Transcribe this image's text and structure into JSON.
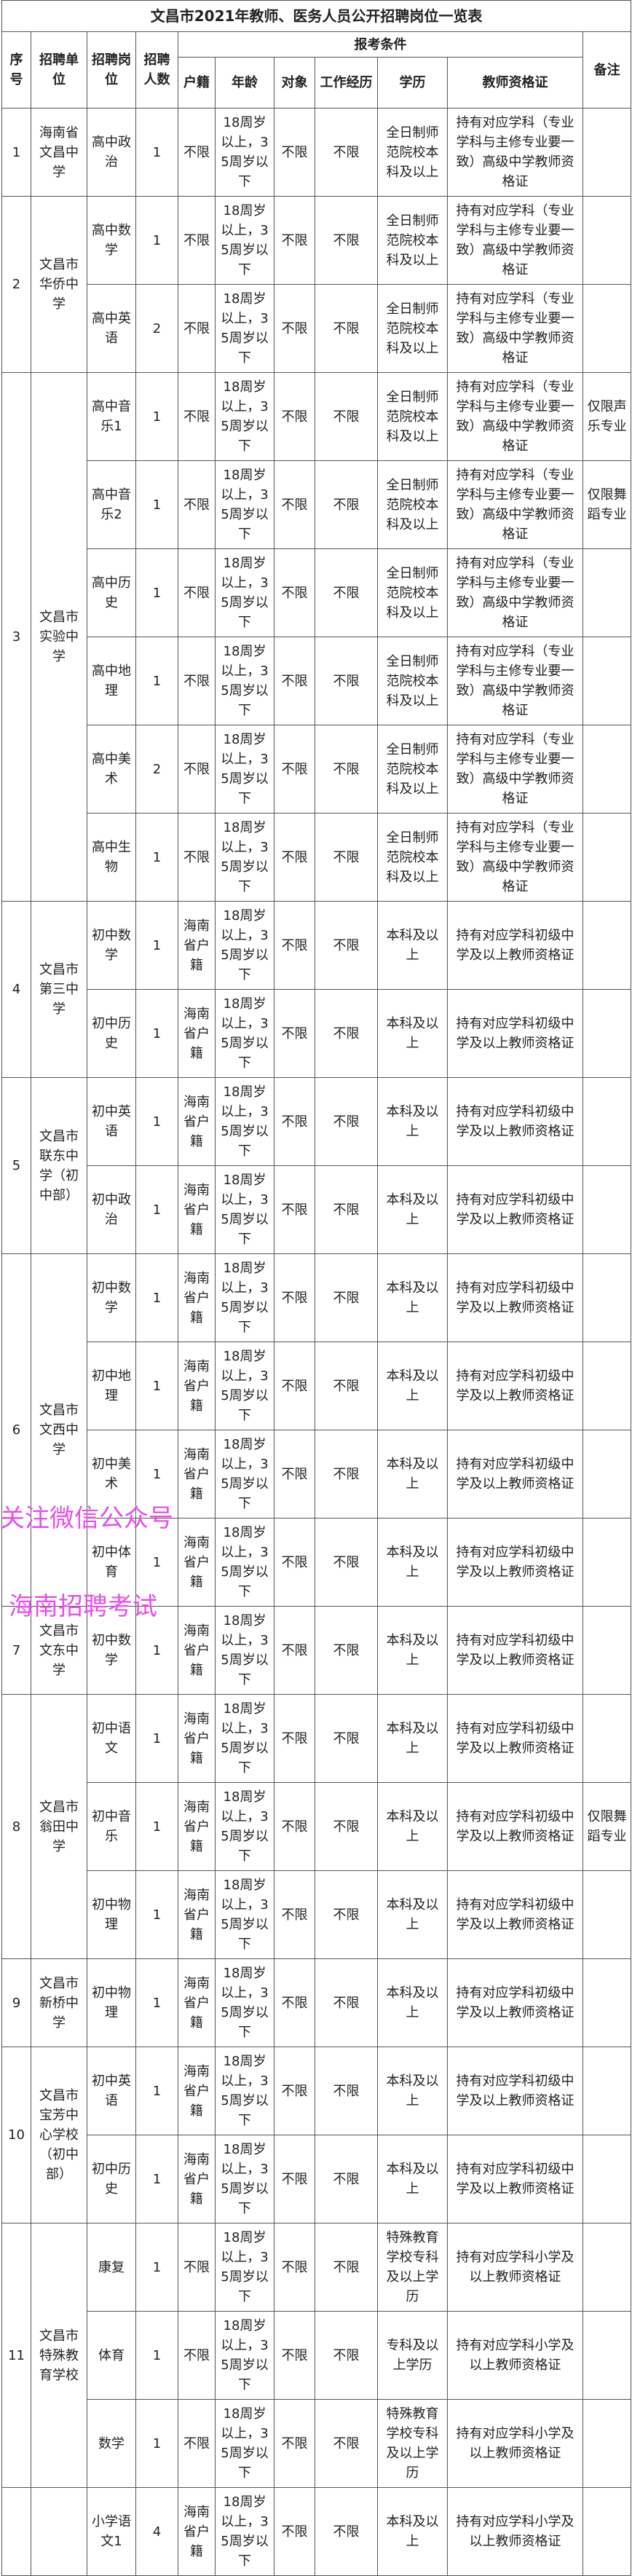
{
  "title": "文昌市2021年教师、医务人员公开招聘岗位一览表",
  "headers": {
    "seq": "序号",
    "unit": "招聘单位",
    "position": "招聘岗位",
    "count": "招聘人数",
    "conditions": "报考条件",
    "huji": "户籍",
    "age": "年龄",
    "target": "对象",
    "experience": "工作经历",
    "education": "学历",
    "certificate": "教师资格证",
    "remark": "备注"
  },
  "groups": [
    {
      "seq": "1",
      "unit": "海南省文昌中学",
      "positions": [
        {
          "name": "高中政治",
          "count": "1",
          "huji": "不限",
          "age": "18周岁以上，35周岁以下",
          "target": "不限",
          "experience": "不限",
          "education": "全日制师范院校本科及以上",
          "certificate": "持有对应学科（专业学科与主修专业要一致）高级中学教师资格证",
          "remark": ""
        }
      ]
    },
    {
      "seq": "2",
      "unit": "文昌市华侨中学",
      "positions": [
        {
          "name": "高中数学",
          "count": "1",
          "huji": "不限",
          "age": "18周岁以上，35周岁以下",
          "target": "不限",
          "experience": "不限",
          "education": "全日制师范院校本科及以上",
          "certificate": "持有对应学科（专业学科与主修专业要一致）高级中学教师资格证",
          "remark": ""
        },
        {
          "name": "高中英语",
          "count": "2",
          "huji": "不限",
          "age": "18周岁以上，35周岁以下",
          "target": "不限",
          "experience": "不限",
          "education": "全日制师范院校本科及以上",
          "certificate": "持有对应学科（专业学科与主修专业要一致）高级中学教师资格证",
          "remark": ""
        }
      ]
    },
    {
      "seq": "3",
      "unit": "文昌市实验中学",
      "positions": [
        {
          "name": "高中音乐1",
          "count": "1",
          "huji": "不限",
          "age": "18周岁以上，35周岁以下",
          "target": "不限",
          "experience": "不限",
          "education": "全日制师范院校本科及以上",
          "certificate": "持有对应学科（专业学科与主修专业要一致）高级中学教师资格证",
          "remark": "仅限声乐专业"
        },
        {
          "name": "高中音乐2",
          "count": "1",
          "huji": "不限",
          "age": "18周岁以上，35周岁以下",
          "target": "不限",
          "experience": "不限",
          "education": "全日制师范院校本科及以上",
          "certificate": "持有对应学科（专业学科与主修专业要一致）高级中学教师资格证",
          "remark": "仅限舞蹈专业"
        },
        {
          "name": "高中历史",
          "count": "1",
          "huji": "不限",
          "age": "18周岁以上，35周岁以下",
          "target": "不限",
          "experience": "不限",
          "education": "全日制师范院校本科及以上",
          "certificate": "持有对应学科（专业学科与主修专业要一致）高级中学教师资格证",
          "remark": ""
        },
        {
          "name": "高中地理",
          "count": "1",
          "huji": "不限",
          "age": "18周岁以上，35周岁以下",
          "target": "不限",
          "experience": "不限",
          "education": "全日制师范院校本科及以上",
          "certificate": "持有对应学科（专业学科与主修专业要一致）高级中学教师资格证",
          "remark": ""
        },
        {
          "name": "高中美术",
          "count": "2",
          "huji": "不限",
          "age": "18周岁以上，35周岁以下",
          "target": "不限",
          "experience": "不限",
          "education": "全日制师范院校本科及以上",
          "certificate": "持有对应学科（专业学科与主修专业要一致）高级中学教师资格证",
          "remark": ""
        },
        {
          "name": "高中生物",
          "count": "1",
          "huji": "不限",
          "age": "18周岁以上，35周岁以下",
          "target": "不限",
          "experience": "不限",
          "education": "全日制师范院校本科及以上",
          "certificate": "持有对应学科（专业学科与主修专业要一致）高级中学教师资格证",
          "remark": ""
        }
      ]
    },
    {
      "seq": "4",
      "unit": "文昌市第三中学",
      "positions": [
        {
          "name": "初中数学",
          "count": "1",
          "huji": "海南省户籍",
          "age": "18周岁以上，35周岁以下",
          "target": "不限",
          "experience": "不限",
          "education": "本科及以上",
          "certificate": "持有对应学科初级中学及以上教师资格证",
          "remark": ""
        },
        {
          "name": "初中历史",
          "count": "1",
          "huji": "海南省户籍",
          "age": "18周岁以上，35周岁以下",
          "target": "不限",
          "experience": "不限",
          "education": "本科及以上",
          "certificate": "持有对应学科初级中学及以上教师资格证",
          "remark": ""
        }
      ]
    },
    {
      "seq": "5",
      "unit": "文昌市联东中学（初中部）",
      "positions": [
        {
          "name": "初中英语",
          "count": "1",
          "huji": "海南省户籍",
          "age": "18周岁以上，35周岁以下",
          "target": "不限",
          "experience": "不限",
          "education": "本科及以上",
          "certificate": "持有对应学科初级中学及以上教师资格证",
          "remark": ""
        },
        {
          "name": "初中政治",
          "count": "1",
          "huji": "海南省户籍",
          "age": "18周岁以上，35周岁以下",
          "target": "不限",
          "experience": "不限",
          "education": "本科及以上",
          "certificate": "持有对应学科初级中学及以上教师资格证",
          "remark": ""
        }
      ]
    },
    {
      "seq": "6",
      "unit": "文昌市文西中学",
      "positions": [
        {
          "name": "初中数学",
          "count": "1",
          "huji": "海南省户籍",
          "age": "18周岁以上，35周岁以下",
          "target": "不限",
          "experience": "不限",
          "education": "本科及以上",
          "certificate": "持有对应学科初级中学及以上教师资格证",
          "remark": ""
        },
        {
          "name": "初中地理",
          "count": "1",
          "huji": "海南省户籍",
          "age": "18周岁以上，35周岁以下",
          "target": "不限",
          "experience": "不限",
          "education": "本科及以上",
          "certificate": "持有对应学科初级中学及以上教师资格证",
          "remark": ""
        },
        {
          "name": "初中美术",
          "count": "1",
          "huji": "海南省户籍",
          "age": "18周岁以上，35周岁以下",
          "target": "不限",
          "experience": "不限",
          "education": "本科及以上",
          "certificate": "持有对应学科初级中学及以上教师资格证",
          "remark": ""
        },
        {
          "name": "初中体育",
          "count": "1",
          "huji": "海南省户籍",
          "age": "18周岁以上，35周岁以下",
          "target": "不限",
          "experience": "不限",
          "education": "本科及以上",
          "certificate": "持有对应学科初级中学及以上教师资格证",
          "remark": ""
        }
      ]
    },
    {
      "seq": "7",
      "unit": "文昌市文东中学",
      "positions": [
        {
          "name": "初中数学",
          "count": "1",
          "huji": "海南省户籍",
          "age": "18周岁以上，35周岁以下",
          "target": "不限",
          "experience": "不限",
          "education": "本科及以上",
          "certificate": "持有对应学科初级中学及以上教师资格证",
          "remark": ""
        }
      ]
    },
    {
      "seq": "8",
      "unit": "文昌市翁田中学",
      "positions": [
        {
          "name": "初中语文",
          "count": "1",
          "huji": "海南省户籍",
          "age": "18周岁以上，35周岁以下",
          "target": "不限",
          "experience": "不限",
          "education": "本科及以上",
          "certificate": "持有对应学科初级中学及以上教师资格证",
          "remark": ""
        },
        {
          "name": "初中音乐",
          "count": "1",
          "huji": "海南省户籍",
          "age": "18周岁以上，35周岁以下",
          "target": "不限",
          "experience": "不限",
          "education": "本科及以上",
          "certificate": "持有对应学科初级中学及以上教师资格证",
          "remark": "仅限舞蹈专业"
        },
        {
          "name": "初中物理",
          "count": "1",
          "huji": "海南省户籍",
          "age": "18周岁以上，35周岁以下",
          "target": "不限",
          "experience": "不限",
          "education": "本科及以上",
          "certificate": "持有对应学科初级中学及以上教师资格证",
          "remark": ""
        }
      ]
    },
    {
      "seq": "9",
      "unit": "文昌市新桥中学",
      "positions": [
        {
          "name": "初中物理",
          "count": "1",
          "huji": "海南省户籍",
          "age": "18周岁以上，35周岁以下",
          "target": "不限",
          "experience": "不限",
          "education": "本科及以上",
          "certificate": "持有对应学科初级中学及以上教师资格证",
          "remark": ""
        }
      ]
    },
    {
      "seq": "10",
      "unit": "文昌市宝芳中心学校（初中部）",
      "positions": [
        {
          "name": "初中英语",
          "count": "1",
          "huji": "海南省户籍",
          "age": "18周岁以上，35周岁以下",
          "target": "不限",
          "experience": "不限",
          "education": "本科及以上",
          "certificate": "持有对应学科初级中学及以上教师资格证",
          "remark": ""
        },
        {
          "name": "初中历史",
          "count": "1",
          "huji": "海南省户籍",
          "age": "18周岁以上，35周岁以下",
          "target": "不限",
          "experience": "不限",
          "education": "本科及以上",
          "certificate": "持有对应学科初级中学及以上教师资格证",
          "remark": ""
        }
      ]
    },
    {
      "seq": "11",
      "unit": "文昌市特殊教育学校",
      "positions": [
        {
          "name": "康复",
          "count": "1",
          "huji": "不限",
          "age": "18周岁以上，35周岁以下",
          "target": "不限",
          "experience": "不限",
          "education": "特殊教育学校专科及以上学历",
          "certificate": "持有对应学科小学及以上教师资格证",
          "remark": ""
        },
        {
          "name": "体育",
          "count": "1",
          "huji": "不限",
          "age": "18周岁以上，35周岁以下",
          "target": "不限",
          "experience": "不限",
          "education": "专科及以上学历",
          "certificate": "持有对应学科小学及以上教师资格证",
          "remark": ""
        },
        {
          "name": "数学",
          "count": "1",
          "huji": "不限",
          "age": "18周岁以上，35周岁以下",
          "target": "不限",
          "experience": "不限",
          "education": "特殊教育学校专科及以上学历",
          "certificate": "持有对应学科小学及以上教师资格证",
          "remark": ""
        }
      ]
    },
    {
      "seq": "",
      "unit": "",
      "positions": [
        {
          "name": "小学语文1",
          "count": "4",
          "huji": "海南省户籍",
          "age": "18周岁以上，35周岁以下",
          "target": "不限",
          "experience": "不限",
          "education": "本科及以上",
          "certificate": "持有对应学科小学及以上教师资格证",
          "remark": ""
        }
      ]
    }
  ],
  "watermark": [
    "关注微信公众号",
    "海南招聘考试"
  ],
  "colors": {
    "border": "#555555",
    "watermark": "#e64fe6"
  }
}
